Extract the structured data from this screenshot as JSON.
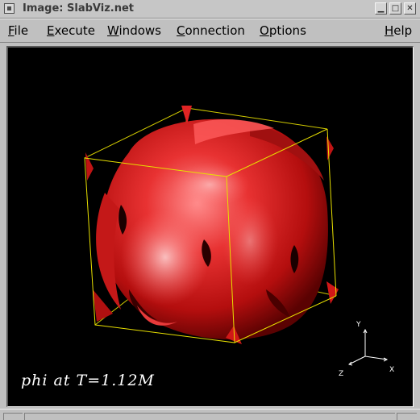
{
  "window": {
    "title": "Image: SlabViz.net",
    "controls": {
      "minimize": "▁",
      "maximize": "□",
      "close": "✕"
    }
  },
  "menubar": {
    "items": [
      {
        "label": "File",
        "mnemonic": "F",
        "rest": "ile"
      },
      {
        "label": "Execute",
        "mnemonic": "E",
        "rest": "xecute"
      },
      {
        "label": "Windows",
        "mnemonic": "W",
        "rest": "indows"
      },
      {
        "label": "Connection",
        "mnemonic": "C",
        "rest": "onnection"
      },
      {
        "label": "Options",
        "mnemonic": "O",
        "rest": "ptions"
      },
      {
        "label": "Help",
        "mnemonic": "H",
        "rest": "elp"
      }
    ]
  },
  "viewport": {
    "caption": "phi at T=1.12M",
    "background": "#000000",
    "surface_color": "#d41c1c",
    "bbox_color": "#e8e000",
    "axes": {
      "x": "X",
      "y": "Y",
      "z": "Z",
      "color": "#ffffff"
    }
  }
}
